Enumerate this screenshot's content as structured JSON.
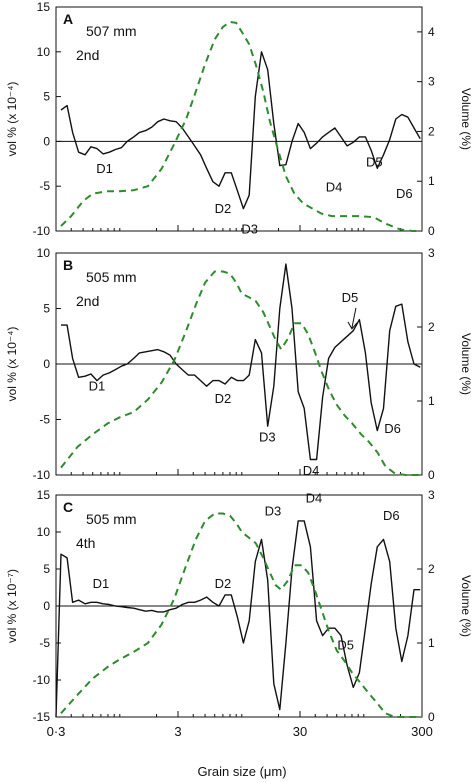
{
  "figure": {
    "x_label": "Grain size (μm)",
    "x_ticks": [
      {
        "value": 0.3,
        "label": "0·3"
      },
      {
        "value": 3,
        "label": "3"
      },
      {
        "value": 30,
        "label": "30"
      },
      {
        "value": 300,
        "label": "300"
      }
    ]
  },
  "style": {
    "diff_color": "#111111",
    "volume_color": "#2e8b2e",
    "axis_color": "#111111"
  },
  "chart_data": [
    {
      "type": "line",
      "panel_letter": "A",
      "depth_label": "507 mm",
      "order_label": "2nd",
      "xscale": "log",
      "xlim": [
        0.3,
        300
      ],
      "ylabel_left": "vol % (x 10⁻⁴)",
      "ylabel_right": "Volume (%)",
      "ylim_left": [
        -10,
        15
      ],
      "ylim_right": [
        0,
        4.5
      ],
      "left_ticks": [
        -10,
        -5,
        0,
        5,
        10,
        15
      ],
      "right_ticks": [
        0,
        1,
        2,
        3,
        4
      ],
      "series": [
        {
          "axis": "left",
          "style": "solid",
          "x": [
            0.33,
            0.37,
            0.41,
            0.46,
            0.52,
            0.58,
            0.65,
            0.73,
            0.82,
            0.92,
            1.03,
            1.15,
            1.3,
            1.45,
            1.63,
            1.83,
            2.05,
            2.3,
            2.58,
            2.9,
            3.25,
            3.65,
            4.1,
            4.6,
            5.15,
            5.8,
            6.5,
            7.3,
            8.2,
            9.2,
            10.3,
            11.5,
            12.9,
            14.5,
            16.3,
            18.3,
            20.5,
            23,
            25.8,
            29,
            32.5,
            36.5,
            41,
            46,
            51.5,
            58,
            65,
            73,
            82,
            92,
            103,
            115,
            129,
            145,
            163,
            183,
            205,
            230,
            258,
            290
          ],
          "y": [
            3.5,
            4.0,
            1.0,
            -1.2,
            -1.5,
            -0.6,
            -0.8,
            -1.4,
            -1.2,
            -0.9,
            -0.7,
            0.0,
            0.5,
            1.0,
            1.2,
            1.6,
            2.2,
            2.5,
            2.3,
            2.2,
            1.5,
            0.5,
            -0.5,
            -1.5,
            -3.0,
            -4.5,
            -5.0,
            -3.5,
            -3.5,
            -5.5,
            -7.5,
            -6.0,
            5.0,
            10.0,
            8.0,
            2.0,
            -2.7,
            -2.6,
            0.0,
            2.0,
            1.0,
            -0.8,
            -0.2,
            0.5,
            1.0,
            1.5,
            0.5,
            -0.5,
            -0.1,
            0.5,
            0.5,
            -1.0,
            -3.0,
            -1.5,
            0.2,
            2.5,
            3.0,
            2.7,
            1.5,
            0.3
          ]
        },
        {
          "axis": "right",
          "style": "dashed",
          "x": [
            0.33,
            0.4,
            0.5,
            0.6,
            0.8,
            1.0,
            1.3,
            1.7,
            2.2,
            2.8,
            3.5,
            4.2,
            5.0,
            6.0,
            7.0,
            8.0,
            9.0,
            10.0,
            11.5,
            13.0,
            15.0,
            17.0,
            20.0,
            23.0,
            27.0,
            32.0,
            38.0,
            45.0,
            55.0,
            70.0,
            90.0,
            120.0,
            150.0,
            200.0,
            250.0,
            300.0
          ],
          "y": [
            0.1,
            0.3,
            0.6,
            0.75,
            0.8,
            0.8,
            0.82,
            0.9,
            1.25,
            1.75,
            2.25,
            2.8,
            3.35,
            3.85,
            4.1,
            4.2,
            4.18,
            4.0,
            3.75,
            3.35,
            2.8,
            2.2,
            1.6,
            1.1,
            0.75,
            0.55,
            0.45,
            0.35,
            0.3,
            0.3,
            0.3,
            0.28,
            0.15,
            0.03,
            0.0,
            0.0
          ]
        }
      ],
      "annotations": [
        {
          "text": "D1",
          "x": 0.75,
          "y": -3.5
        },
        {
          "text": "D2",
          "x": 7.0,
          "y": -8.0
        },
        {
          "text": "D3",
          "x": 11.6,
          "y": -10.3
        },
        {
          "text": "D4",
          "x": 57.0,
          "y": -5.6
        },
        {
          "text": "D5",
          "x": 122.0,
          "y": -2.8
        },
        {
          "text": "D6",
          "x": 215.0,
          "y": -6.3
        }
      ]
    },
    {
      "type": "line",
      "panel_letter": "B",
      "depth_label": "505 mm",
      "order_label": "2nd",
      "xscale": "log",
      "xlim": [
        0.3,
        300
      ],
      "ylabel_left": "vol % (x 10⁻⁴)",
      "ylabel_right": "Volume (%)",
      "ylim_left": [
        -10,
        10
      ],
      "ylim_right": [
        0,
        3
      ],
      "left_ticks": [
        -10,
        -5,
        0,
        5,
        10
      ],
      "right_ticks": [
        0,
        1,
        2,
        3
      ],
      "series": [
        {
          "axis": "left",
          "style": "solid",
          "x": [
            0.33,
            0.37,
            0.41,
            0.46,
            0.52,
            0.58,
            0.65,
            0.73,
            0.82,
            0.92,
            1.03,
            1.15,
            1.3,
            1.45,
            1.63,
            1.83,
            2.05,
            2.3,
            2.58,
            2.9,
            3.25,
            3.65,
            4.1,
            4.6,
            5.15,
            5.8,
            6.5,
            7.3,
            8.2,
            9.2,
            10.3,
            11.5,
            12.9,
            14.5,
            16.3,
            18.3,
            20.5,
            23,
            25.8,
            29,
            32.5,
            36.5,
            41,
            46,
            51.5,
            58,
            65,
            73,
            82,
            92,
            103,
            115,
            129,
            145,
            163,
            183,
            205,
            230,
            258,
            290
          ],
          "y": [
            3.5,
            3.5,
            0.5,
            -1.2,
            -1.1,
            -0.9,
            -1.5,
            -1.0,
            -0.8,
            -0.5,
            -0.2,
            0.0,
            0.5,
            1.0,
            1.1,
            1.2,
            1.3,
            1.1,
            0.8,
            0.0,
            -0.5,
            -1.0,
            -1.0,
            -1.5,
            -2.0,
            -1.5,
            -1.5,
            -1.8,
            -1.2,
            -1.5,
            -1.5,
            -1.0,
            2.2,
            1.0,
            -5.6,
            -2.0,
            5.0,
            9.0,
            5.0,
            -2.5,
            -4.0,
            -8.6,
            -8.6,
            -3.0,
            0.5,
            1.5,
            2.0,
            2.5,
            3.0,
            4.0,
            1.0,
            -3.5,
            -6.0,
            -4.0,
            3.0,
            5.2,
            5.4,
            2.0,
            0.0,
            -0.3
          ]
        },
        {
          "axis": "right",
          "style": "dashed",
          "x": [
            0.33,
            0.45,
            0.6,
            0.8,
            1.0,
            1.3,
            1.7,
            2.2,
            2.8,
            3.5,
            4.2,
            5.0,
            6.0,
            7.0,
            8.0,
            9.0,
            10.0,
            11.5,
            13.0,
            15.0,
            17.0,
            19.0,
            21.0,
            24.0,
            27.0,
            31.0,
            35.0,
            40.0,
            45.0,
            52.0,
            60.0,
            70.0,
            80.0,
            95.0,
            110.0,
            130.0,
            150.0,
            180.0,
            220.0,
            300.0
          ],
          "y": [
            0.1,
            0.38,
            0.55,
            0.7,
            0.78,
            0.85,
            1.02,
            1.25,
            1.55,
            1.95,
            2.3,
            2.6,
            2.75,
            2.75,
            2.72,
            2.6,
            2.45,
            2.4,
            2.35,
            2.2,
            2.0,
            1.82,
            1.7,
            1.85,
            2.05,
            2.05,
            1.9,
            1.65,
            1.4,
            1.15,
            0.95,
            0.8,
            0.7,
            0.55,
            0.45,
            0.3,
            0.12,
            0.02,
            0.0,
            0.0
          ]
        }
      ],
      "annotations": [
        {
          "text": "D1",
          "x": 0.65,
          "y": -2.4
        },
        {
          "text": "D2",
          "x": 7.0,
          "y": -3.5
        },
        {
          "text": "D3",
          "x": 16.2,
          "y": -7.0
        },
        {
          "text": "D4",
          "x": 37.0,
          "y": -10.0
        },
        {
          "text": "D5",
          "x": 77.0,
          "y": 5.6
        },
        {
          "text": "D6",
          "x": 172.0,
          "y": -6.2
        }
      ]
    },
    {
      "type": "line",
      "panel_letter": "C",
      "depth_label": "505 mm",
      "order_label": "4th",
      "xscale": "log",
      "xlim": [
        0.3,
        300
      ],
      "ylabel_left": "vol % (x 10⁻⁷)",
      "ylabel_right": "Volume (%)",
      "ylim_left": [
        -15,
        15
      ],
      "ylim_right": [
        0,
        3
      ],
      "left_ticks": [
        -15,
        -10,
        -5,
        0,
        5,
        10,
        15
      ],
      "right_ticks": [
        0,
        1,
        2,
        3
      ],
      "series": [
        {
          "axis": "left",
          "style": "solid",
          "x": [
            0.3,
            0.33,
            0.37,
            0.41,
            0.46,
            0.52,
            0.58,
            0.65,
            0.73,
            0.82,
            0.92,
            1.03,
            1.15,
            1.3,
            1.45,
            1.63,
            1.83,
            2.05,
            2.3,
            2.58,
            2.9,
            3.25,
            3.65,
            4.1,
            4.6,
            5.15,
            5.8,
            6.5,
            7.3,
            8.2,
            9.2,
            10.3,
            11.5,
            12.9,
            14.5,
            16.3,
            18.3,
            20.5,
            23,
            25.8,
            29,
            32.5,
            36.5,
            41,
            46,
            51.5,
            58,
            65,
            73,
            82,
            92,
            103,
            115,
            129,
            145,
            163,
            183,
            205,
            230,
            258,
            290
          ],
          "y": [
            -15.0,
            7.0,
            6.5,
            0.5,
            0.8,
            0.3,
            0.5,
            0.5,
            0.3,
            0.2,
            0.0,
            -0.1,
            -0.2,
            -0.3,
            -0.5,
            -0.7,
            -0.6,
            -0.8,
            -0.8,
            -0.5,
            -0.3,
            0.2,
            0.5,
            0.5,
            0.8,
            1.2,
            0.5,
            0.0,
            1.5,
            1.5,
            -1.5,
            -5.0,
            -2.0,
            6.0,
            9.0,
            3.5,
            -10.5,
            -14.0,
            -5.0,
            5.0,
            11.5,
            11.5,
            8.0,
            -2.0,
            -4.0,
            -3.0,
            -3.0,
            -4.0,
            -8.0,
            -11.0,
            -9.0,
            -3.0,
            3.0,
            8.0,
            9.0,
            6.0,
            -3.0,
            -7.5,
            -4.0,
            2.2,
            2.2
          ]
        },
        {
          "axis": "right",
          "style": "dashed",
          "x": [
            0.33,
            0.45,
            0.6,
            0.8,
            1.0,
            1.3,
            1.7,
            2.2,
            2.8,
            3.5,
            4.2,
            5.0,
            6.0,
            7.0,
            8.0,
            9.0,
            10.0,
            11.5,
            13.0,
            15.0,
            17.0,
            19.0,
            21.0,
            24.0,
            27.0,
            31.0,
            35.0,
            40.0,
            45.0,
            52.0,
            60.0,
            70.0,
            80.0,
            95.0,
            110.0,
            130.0,
            150.0,
            180.0,
            220.0,
            300.0
          ],
          "y": [
            0.05,
            0.3,
            0.52,
            0.68,
            0.78,
            0.88,
            1.0,
            1.25,
            1.6,
            2.05,
            2.4,
            2.65,
            2.75,
            2.75,
            2.72,
            2.62,
            2.5,
            2.42,
            2.35,
            2.15,
            1.95,
            1.78,
            1.72,
            1.85,
            2.05,
            2.05,
            1.95,
            1.7,
            1.45,
            1.15,
            0.9,
            0.75,
            0.6,
            0.45,
            0.32,
            0.18,
            0.05,
            0.0,
            0.0,
            0.0
          ]
        }
      ],
      "annotations": [
        {
          "text": "D1",
          "x": 0.7,
          "y": 2.4
        },
        {
          "text": "D2",
          "x": 7.0,
          "y": 2.4
        },
        {
          "text": "D3",
          "x": 18.0,
          "y": 12.2
        },
        {
          "text": "D4",
          "x": 39.0,
          "y": 14.0
        },
        {
          "text": "D5",
          "x": 71.0,
          "y": -5.9
        },
        {
          "text": "D6",
          "x": 168.0,
          "y": 11.6
        }
      ]
    }
  ]
}
